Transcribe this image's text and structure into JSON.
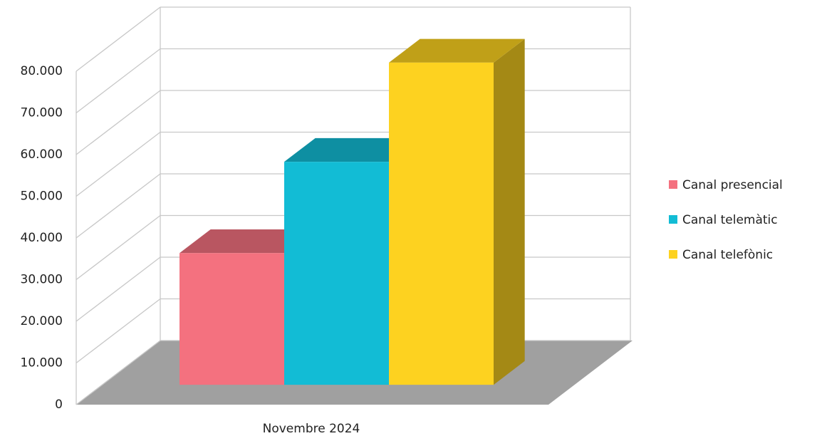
{
  "chart_data": {
    "type": "bar3d",
    "categories": [
      "Novembre 2024"
    ],
    "series": [
      {
        "name": "Canal presencial",
        "color": "#f4717f",
        "values": [
          31600
        ]
      },
      {
        "name": "Canal telemàtic",
        "color": "#12bcd5",
        "values": [
          53500
        ]
      },
      {
        "name": "Canal telefònic",
        "color": "#fdd220",
        "values": [
          77300
        ]
      }
    ],
    "ylim": [
      0,
      80000
    ],
    "yticks": [
      0,
      {
        "value": 10000,
        "label": "10.000"
      },
      {
        "value": 20000,
        "label": "20.000"
      },
      {
        "value": 30000,
        "label": "30.000"
      },
      {
        "value": 40000,
        "label": "40.000"
      },
      {
        "value": 50000,
        "label": "50.000"
      },
      {
        "value": 60000,
        "label": "60.000"
      },
      {
        "value": 70000,
        "label": "70.000"
      },
      {
        "value": 80000,
        "label": "80.000"
      }
    ],
    "grid": true,
    "legend": "right"
  }
}
